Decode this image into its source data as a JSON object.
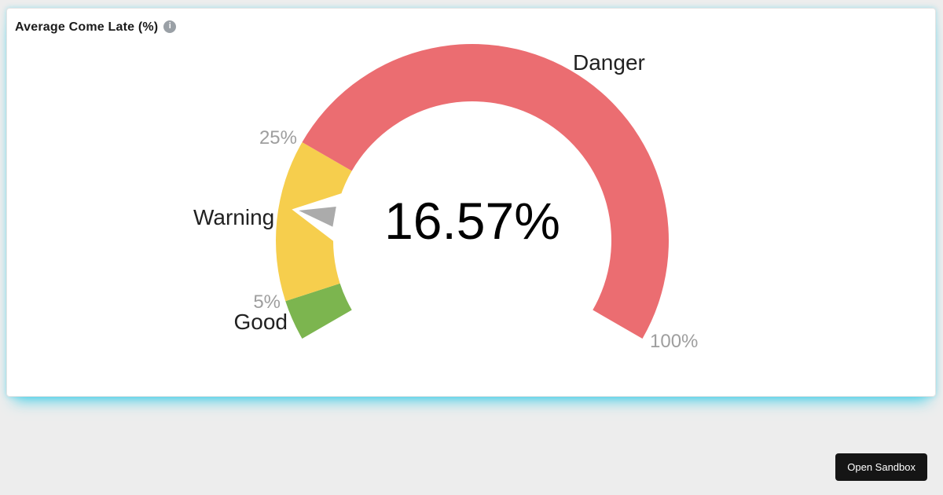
{
  "header": {
    "title": "Average Come Late (%)",
    "info_icon_glyph": "i"
  },
  "chart_data": {
    "type": "gauge",
    "title": "Average Come Late (%)",
    "value": 16.57,
    "value_display": "16.57%",
    "min": 0,
    "max": 100,
    "start_angle_deg": -120,
    "end_angle_deg": 120,
    "bands": [
      {
        "label": "Good",
        "from": 0,
        "to": 5,
        "color": "#7cb54f"
      },
      {
        "label": "Warning",
        "from": 5,
        "to": 25,
        "color": "#f6ce4d"
      },
      {
        "label": "Danger",
        "from": 25,
        "to": 100,
        "color": "#eb6d71"
      }
    ],
    "ticks": [
      {
        "label": "5%",
        "value": 5
      },
      {
        "label": "25%",
        "value": 25
      },
      {
        "label": "100%",
        "value": 100
      }
    ],
    "needle_color": "#ababab",
    "needle_outline_color": "#ffffff"
  },
  "footer": {
    "open_sandbox_label": "Open Sandbox"
  },
  "colors": {
    "page_bg": "#ededed",
    "card_bg": "#ffffff",
    "card_border": "#e4e4e4",
    "glow": "#3ecfe8",
    "title_text": "#1b1b1b",
    "value_text": "#000000",
    "band_label_text": "#212121",
    "tick_label_text": "#9e9e9e",
    "needle": "#ababab",
    "button_bg": "#151515",
    "button_text": "#ffffff",
    "info_icon_bg": "#9aa0a6"
  }
}
